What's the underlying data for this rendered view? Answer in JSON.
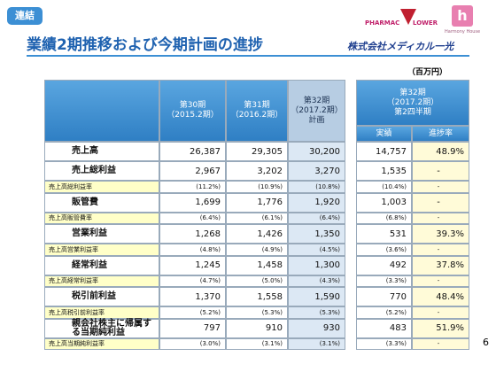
{
  "header": {
    "badge": "連結",
    "title": "業績2期推移および今期計画の進捗",
    "logo_left": "PHARMAC",
    "logo_right": "LOWER",
    "logo_house": "Harmony House",
    "company": "株式会社メディカル一光",
    "unit": "（百万円）"
  },
  "table": {
    "columns": [
      [
        "第30期",
        "（2015.2期）"
      ],
      [
        "第31期",
        "（2016.2期）"
      ],
      [
        "第32期",
        "（2017.2期）",
        "計画"
      ]
    ],
    "q2_header": [
      "第32期",
      "（2017.2期）",
      "第2四半期"
    ],
    "q2_columns": [
      "実績",
      "進捗率"
    ],
    "rows": [
      {
        "style": "main",
        "label": "売上高",
        "cells": [
          "26,387",
          "29,305",
          "30,200",
          "14,757",
          "48.9%"
        ]
      },
      {
        "style": "main",
        "label": "売上総利益",
        "cells": [
          "2,967",
          "3,202",
          "3,270",
          "1,535",
          "-"
        ]
      },
      {
        "style": "ratio",
        "label": "売上高総利益率",
        "cells": [
          "(11.2%)",
          "(10.9%)",
          "(10.8%)",
          "(10.4%)",
          "-"
        ]
      },
      {
        "style": "main",
        "label": "販管費",
        "cells": [
          "1,699",
          "1,776",
          "1,920",
          "1,003",
          "-"
        ]
      },
      {
        "style": "ratio",
        "label": "売上高販管費率",
        "cells": [
          "(6.4%)",
          "(6.1%)",
          "(6.4%)",
          "(6.8%)",
          "-"
        ]
      },
      {
        "style": "main",
        "label": "営業利益",
        "cells": [
          "1,268",
          "1,426",
          "1,350",
          "531",
          "39.3%"
        ]
      },
      {
        "style": "ratio",
        "label": "売上高営業利益率",
        "cells": [
          "(4.8%)",
          "(4.9%)",
          "(4.5%)",
          "(3.6%)",
          "-"
        ]
      },
      {
        "style": "main",
        "label": "経常利益",
        "cells": [
          "1,245",
          "1,458",
          "1,300",
          "492",
          "37.8%"
        ]
      },
      {
        "style": "ratio",
        "label": "売上高経常利益率",
        "cells": [
          "(4.7%)",
          "(5.0%)",
          "(4.3%)",
          "(3.3%)",
          "-"
        ]
      },
      {
        "style": "main",
        "label": "税引前利益",
        "cells": [
          "1,370",
          "1,558",
          "1,590",
          "770",
          "48.4%"
        ]
      },
      {
        "style": "ratio",
        "label": "売上高税引前利益率",
        "cells": [
          "(5.2%)",
          "(5.3%)",
          "(5.3%)",
          "(5.2%)",
          "-"
        ]
      },
      {
        "style": "main",
        "label": "親会社株主に帰属する当期純利益",
        "cells": [
          "797",
          "910",
          "930",
          "483",
          "51.9%"
        ]
      },
      {
        "style": "ratio",
        "label": "売上高当期純利益率",
        "cells": [
          "(3.0%)",
          "(3.1%)",
          "(3.1%)",
          "(3.3%)",
          "-"
        ]
      }
    ]
  },
  "footer": {
    "page": "6"
  }
}
